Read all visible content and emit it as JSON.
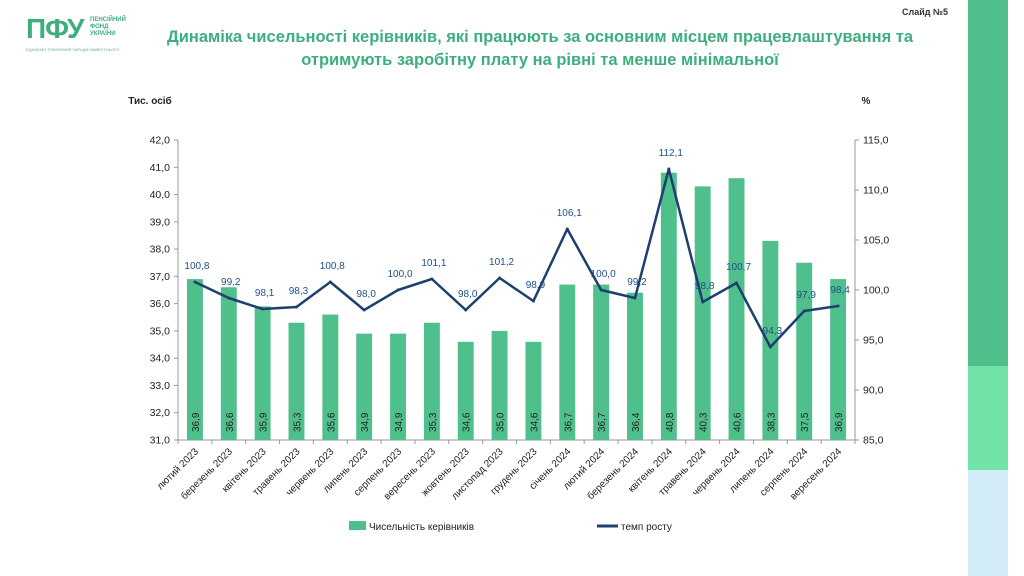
{
  "header": {
    "logo_mark": "ПФУ",
    "logo_text": "ПЕНСІЙНИЙ\nФОНД\nУКРАЇНИ",
    "logo_sub": "ЄДНАЄМО ПОКОЛІННЯ ЗАРАДИ МАЙБУТНЬОГО",
    "slide_num": "Слайд №5",
    "title": "Динаміка чисельності керівників, які працюють за основним місцем працевлаштування та отримують заробітну плату на рівні та менше мінімальної"
  },
  "colors": {
    "bar": "#4fbf8c",
    "line": "#1f3f6e",
    "title": "#3fae7e"
  },
  "chart_data": {
    "type": "bar",
    "left_axis_label": "Тис. осіб",
    "right_axis_label": "%",
    "categories": [
      "лютий 2023",
      "березень 2023",
      "квітень 2023",
      "травень 2023",
      "червень 2023",
      "липень 2023",
      "серпень 2023",
      "вересень 2023",
      "жовтень 2023",
      "листопад 2023",
      "грудень 2023",
      "січень 2024",
      "лютий 2024",
      "березень 2024",
      "квітень 2024",
      "травень 2024",
      "червень 2024",
      "липень 2024",
      "серпень 2024",
      "вересень 2024"
    ],
    "ylim": [
      31,
      42
    ],
    "y_ticks": [
      "31,0",
      "32,0",
      "33,0",
      "34,0",
      "35,0",
      "36,0",
      "37,0",
      "38,0",
      "39,0",
      "40,0",
      "41,0",
      "42,0"
    ],
    "y2lim": [
      85,
      115
    ],
    "y2_ticks": [
      "85,0",
      "90,0",
      "95,0",
      "100,0",
      "105,0",
      "110,0",
      "115,0"
    ],
    "series": [
      {
        "name": "Чисельність керівників",
        "kind": "bar",
        "values": [
          36.9,
          36.6,
          35.9,
          35.3,
          35.6,
          34.9,
          34.9,
          35.3,
          34.6,
          35.0,
          34.6,
          36.7,
          36.7,
          36.4,
          40.8,
          40.3,
          40.6,
          38.3,
          37.5,
          36.9
        ],
        "labels": [
          "36,9",
          "36,6",
          "35,9",
          "35,3",
          "35,6",
          "34,9",
          "34,9",
          "35,3",
          "34,6",
          "35,0",
          "34,6",
          "36,7",
          "36,7",
          "36,4",
          "40,8",
          "40,3",
          "40,6",
          "38,3",
          "37,5",
          "36,9"
        ]
      },
      {
        "name": "темп росту",
        "kind": "line",
        "axis": "right",
        "values": [
          100.8,
          99.2,
          98.1,
          98.3,
          100.8,
          98.0,
          100.0,
          101.1,
          98.0,
          101.2,
          98.9,
          106.1,
          100.0,
          99.2,
          112.1,
          98.8,
          100.7,
          94.3,
          97.9,
          98.4
        ],
        "labels": [
          "100,8",
          "99,2",
          "98,1",
          "98,3",
          "100,8",
          "98,0",
          "100,0",
          "101,1",
          "98,0",
          "101,2",
          "98,9",
          "106,1",
          "100,0",
          "99,2",
          "112,1",
          "98,8",
          "100,7",
          "94,3",
          "97,9",
          "98,4"
        ]
      }
    ],
    "legend_position": "bottom",
    "grid": false
  }
}
